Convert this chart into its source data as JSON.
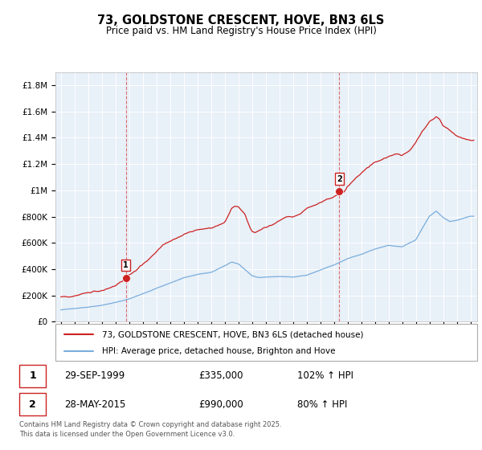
{
  "title": "73, GOLDSTONE CRESCENT, HOVE, BN3 6LS",
  "subtitle": "Price paid vs. HM Land Registry's House Price Index (HPI)",
  "ylabel_ticks": [
    "£0",
    "£200K",
    "£400K",
    "£600K",
    "£800K",
    "£1M",
    "£1.2M",
    "£1.4M",
    "£1.6M",
    "£1.8M"
  ],
  "ytick_values": [
    0,
    200000,
    400000,
    600000,
    800000,
    1000000,
    1200000,
    1400000,
    1600000,
    1800000
  ],
  "ylim": [
    0,
    1900000
  ],
  "xlim_start": 1994.6,
  "xlim_end": 2025.5,
  "sale1_x": 1999.75,
  "sale1_y": 335000,
  "sale1_label": "1",
  "sale1_date": "29-SEP-1999",
  "sale1_price": "£335,000",
  "sale1_hpi": "102% ↑ HPI",
  "sale2_x": 2015.4,
  "sale2_y": 990000,
  "sale2_label": "2",
  "sale2_date": "28-MAY-2015",
  "sale2_price": "£990,000",
  "sale2_hpi": "80% ↑ HPI",
  "legend_line1": "73, GOLDSTONE CRESCENT, HOVE, BN3 6LS (detached house)",
  "legend_line2": "HPI: Average price, detached house, Brighton and Hove",
  "footer": "Contains HM Land Registry data © Crown copyright and database right 2025.\nThis data is licensed under the Open Government Licence v3.0.",
  "line_color_red": "#cc2222",
  "line_color_blue": "#7aaddc",
  "vline_color": "#e06060",
  "grid_color": "#cccccc",
  "chart_bg": "#e8f0f8",
  "bg_color": "#ffffff",
  "xticks": [
    1995,
    1996,
    1997,
    1998,
    1999,
    2000,
    2001,
    2002,
    2003,
    2004,
    2005,
    2006,
    2007,
    2008,
    2009,
    2010,
    2011,
    2012,
    2013,
    2014,
    2015,
    2016,
    2017,
    2018,
    2019,
    2020,
    2021,
    2022,
    2023,
    2024,
    2025
  ]
}
